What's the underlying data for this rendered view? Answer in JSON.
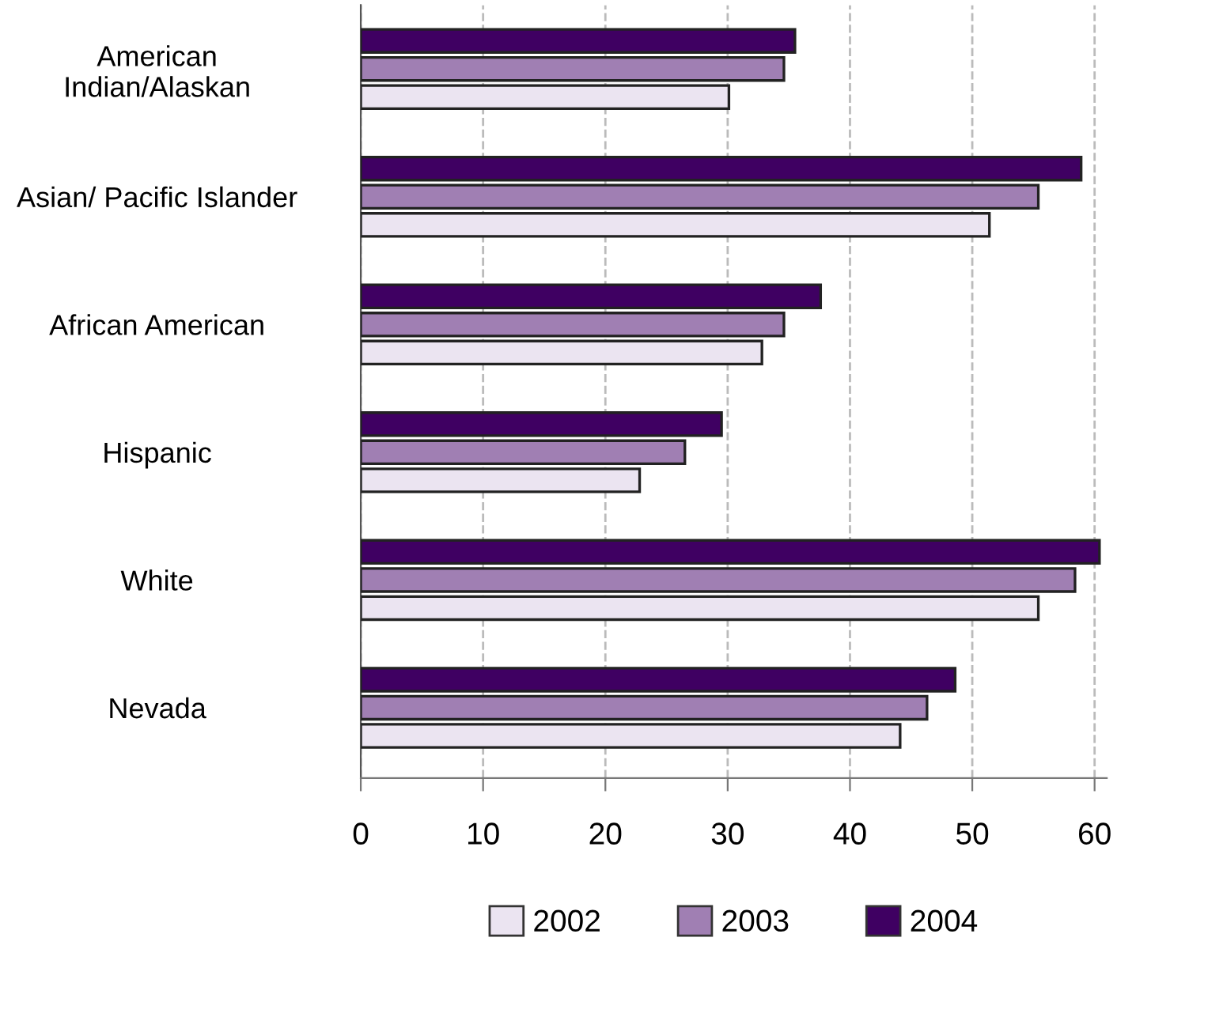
{
  "chart_data": {
    "type": "bar",
    "orientation": "horizontal",
    "categories": [
      "American\nIndian/Alaskan",
      "Asian/ Pacific Islander",
      "African American",
      "Hispanic",
      "White",
      "Nevada"
    ],
    "series": [
      {
        "name": "2002",
        "color": "#ebe4f1",
        "values": [
          30.1,
          51.4,
          32.8,
          22.8,
          55.4,
          44.1
        ]
      },
      {
        "name": "2003",
        "color": "#a07fb3",
        "values": [
          34.6,
          55.4,
          34.6,
          26.5,
          58.4,
          46.3
        ]
      },
      {
        "name": "2004",
        "color": "#3f0062",
        "values": [
          35.5,
          58.9,
          37.6,
          29.5,
          60.4,
          48.6
        ]
      }
    ],
    "xlim": [
      0,
      61
    ],
    "xticks": [
      0,
      10,
      20,
      30,
      40,
      50,
      60
    ],
    "grid": "x",
    "legend": "bottom"
  }
}
